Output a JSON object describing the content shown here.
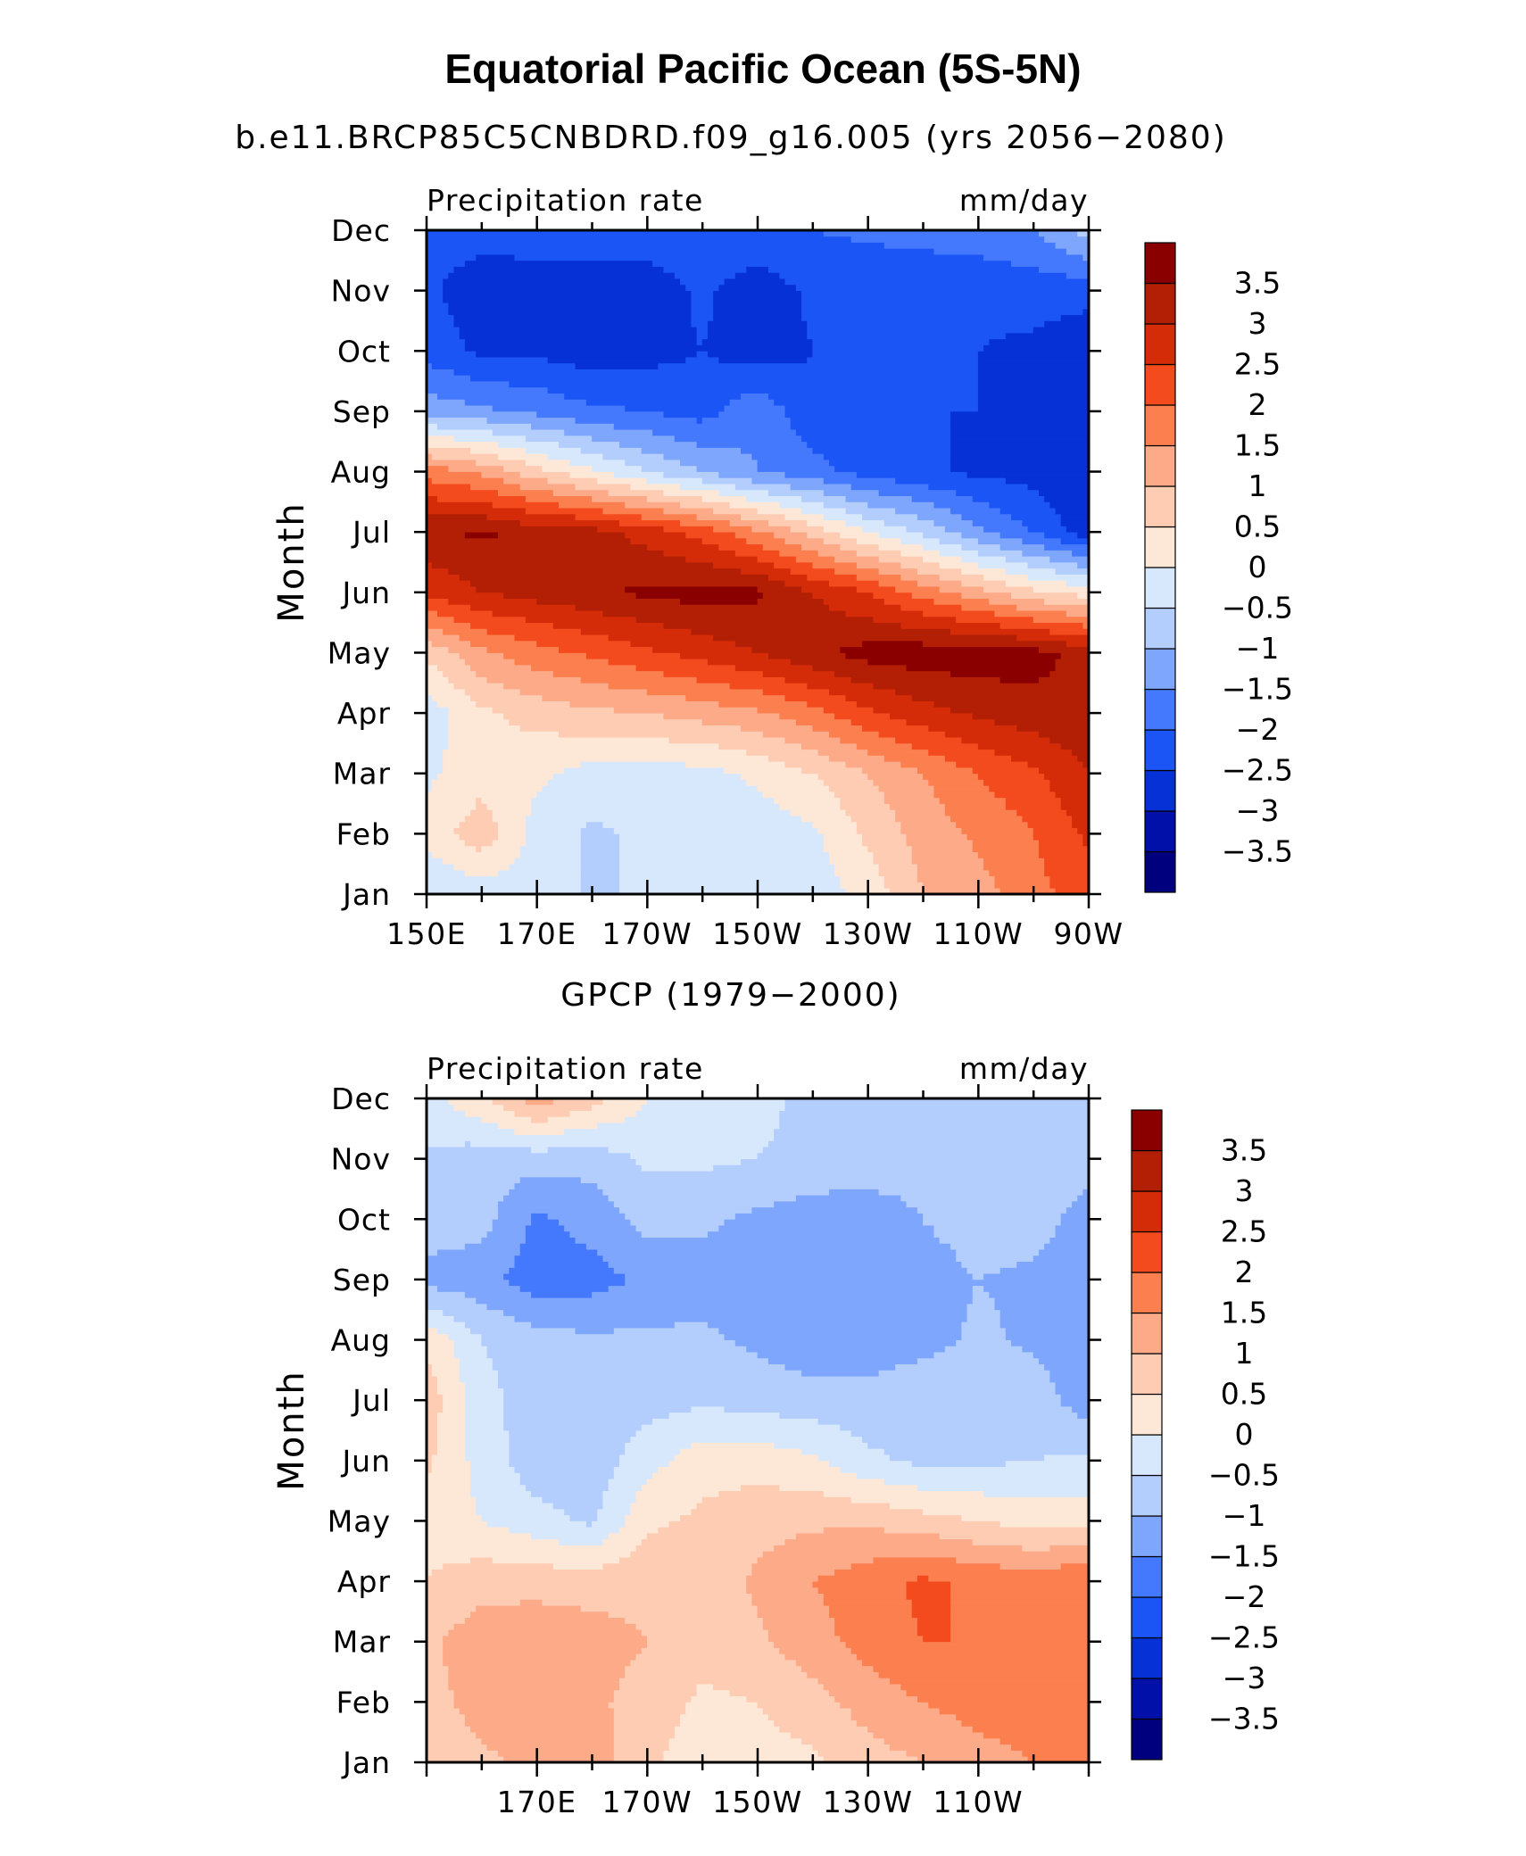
{
  "figure": {
    "title": "Equatorial Pacific Ocean (5S-5N)"
  },
  "colorbar": {
    "levels": [
      -3.5,
      -3,
      -2.5,
      -2,
      -1.5,
      -1,
      -0.5,
      0,
      0.5,
      1,
      1.5,
      2,
      2.5,
      3,
      3.5
    ],
    "labels": [
      "−3.5",
      "−3",
      "−2.5",
      "−2",
      "−1.5",
      "−1",
      "−0.5",
      "0",
      "0.5",
      "1",
      "1.5",
      "2",
      "2.5",
      "3",
      "3.5"
    ],
    "colors": [
      "#00007f",
      "#0010a8",
      "#0631d6",
      "#1c55f5",
      "#4579fd",
      "#7ea6fc",
      "#b3cefc",
      "#d8e8fc",
      "#fde7d7",
      "#fdccb3",
      "#fcaa88",
      "#fb7f4f",
      "#f44b1e",
      "#d42c09",
      "#b31f04",
      "#8a0000"
    ]
  },
  "chart_data": [
    {
      "type": "heatmap",
      "subtitle": "b.e11.BRCP85C5CNBDRD.f09_g16.005 (yrs 2056−2080)",
      "left_label": "Precipitation rate",
      "right_label": "mm/day",
      "xlabel": "",
      "ylabel": "Month",
      "x_range_deg_east": [
        150,
        270
      ],
      "x_ticks": [
        150,
        170,
        190,
        210,
        230,
        250,
        270
      ],
      "x_tick_labels": [
        "150E",
        "170E",
        "170W",
        "150W",
        "130W",
        "110W",
        "90W"
      ],
      "months": [
        "Jan",
        "Feb",
        "Mar",
        "Apr",
        "May",
        "Jun",
        "Jul",
        "Aug",
        "Sep",
        "Oct",
        "Nov",
        "Dec"
      ],
      "z_units": "mm/day",
      "z_grid": [
        [
          -0.5,
          -0.3,
          -0.2,
          -0.6,
          -0.4,
          -0.3,
          -0.3,
          -0.3,
          0.2,
          1.0,
          1.3,
          1.8,
          2.3
        ],
        [
          0.2,
          0.8,
          -0.2,
          -0.6,
          -0.4,
          -0.3,
          -0.3,
          -0.1,
          0.6,
          1.2,
          1.6,
          2.0,
          2.6
        ],
        [
          -0.1,
          0.3,
          0.1,
          -0.2,
          -0.2,
          -0.2,
          0.1,
          0.5,
          1.0,
          1.5,
          2.0,
          2.4,
          3.0
        ],
        [
          -0.3,
          0.4,
          0.7,
          0.9,
          1.0,
          1.2,
          1.4,
          1.8,
          2.4,
          2.8,
          3.1,
          3.3,
          3.4
        ],
        [
          0.6,
          1.4,
          1.8,
          2.1,
          2.4,
          2.7,
          3.0,
          3.4,
          3.7,
          3.8,
          3.8,
          3.7,
          3.3
        ],
        [
          2.6,
          3.0,
          3.2,
          3.4,
          3.6,
          3.7,
          3.6,
          3.0,
          2.5,
          1.8,
          1.2,
          0.6,
          0.3
        ],
        [
          3.4,
          3.6,
          3.3,
          3.2,
          2.8,
          2.3,
          1.6,
          0.8,
          0.0,
          -0.6,
          -1.4,
          -2.0,
          -2.8
        ],
        [
          1.8,
          1.4,
          0.7,
          0.1,
          -0.5,
          -1.0,
          -1.5,
          -1.8,
          -2.2,
          -2.4,
          -2.6,
          -2.7,
          -3.0
        ],
        [
          -1.2,
          -1.4,
          -1.6,
          -1.9,
          -2.0,
          -2.2,
          -1.6,
          -2.4,
          -2.4,
          -2.5,
          -2.5,
          -2.5,
          -2.8
        ],
        [
          -2.2,
          -2.6,
          -2.6,
          -2.8,
          -2.7,
          -2.5,
          -2.8,
          -2.5,
          -2.5,
          -2.5,
          -2.5,
          -2.6,
          -2.9
        ],
        [
          -2.4,
          -2.8,
          -2.7,
          -2.8,
          -2.8,
          -2.4,
          -2.8,
          -2.4,
          -2.4,
          -2.4,
          -2.4,
          -2.3,
          -2.3
        ],
        [
          -2.3,
          -2.3,
          -2.3,
          -2.2,
          -2.2,
          -2.1,
          -2.1,
          -2.0,
          -1.9,
          -1.8,
          -1.7,
          -1.5,
          -0.8
        ]
      ]
    },
    {
      "type": "heatmap",
      "subtitle": "GPCP (1979−2000)",
      "left_label": "Precipitation rate",
      "right_label": "mm/day",
      "xlabel": "",
      "ylabel": "Month",
      "x_range_deg_east": [
        150,
        270
      ],
      "x_ticks": [
        170,
        190,
        210,
        230,
        250
      ],
      "x_tick_labels": [
        "170E",
        "170W",
        "150W",
        "130W",
        "110W"
      ],
      "months": [
        "Jan",
        "Feb",
        "Mar",
        "Apr",
        "May",
        "Jun",
        "Jul",
        "Aug",
        "Sep",
        "Oct",
        "Nov",
        "Dec"
      ],
      "z_units": "mm/day",
      "z_grid": [
        [
          0.6,
          0.9,
          1.1,
          1.3,
          0.6,
          0.2,
          0.3,
          0.4,
          0.8,
          1.0,
          1.3,
          1.5,
          1.6
        ],
        [
          0.8,
          1.2,
          1.3,
          1.1,
          0.8,
          0.4,
          0.5,
          0.8,
          1.2,
          1.5,
          1.7,
          1.8,
          1.7
        ],
        [
          0.9,
          1.3,
          1.4,
          1.2,
          1.0,
          0.7,
          0.9,
          1.3,
          1.7,
          2.0,
          2.0,
          1.9,
          2.0
        ],
        [
          0.5,
          0.8,
          0.8,
          0.8,
          0.9,
          0.7,
          1.1,
          1.5,
          1.8,
          2.1,
          1.9,
          1.8,
          2.0
        ],
        [
          0.3,
          0.0,
          -0.3,
          -0.6,
          0.4,
          0.6,
          0.8,
          0.9,
          0.9,
          0.7,
          0.5,
          0.3,
          0.3
        ],
        [
          0.6,
          -0.2,
          -0.8,
          -0.8,
          -0.2,
          0.3,
          0.3,
          0.1,
          -0.4,
          -0.6,
          -0.6,
          -0.5,
          -0.4
        ],
        [
          0.8,
          -0.3,
          -0.8,
          -0.8,
          -0.7,
          -0.6,
          -0.7,
          -0.8,
          -0.8,
          -0.6,
          -0.6,
          -0.7,
          -1.3
        ],
        [
          0.4,
          -0.5,
          -0.8,
          -0.9,
          -0.9,
          -0.9,
          -1.1,
          -1.3,
          -1.3,
          -1.2,
          -0.9,
          -1.1,
          -1.4
        ],
        [
          -1.2,
          -1.3,
          -1.8,
          -1.7,
          -1.4,
          -1.2,
          -1.4,
          -1.3,
          -1.4,
          -1.2,
          -1.0,
          -1.1,
          -1.3
        ],
        [
          -0.7,
          -0.8,
          -1.6,
          -1.3,
          -0.8,
          -0.9,
          -1.1,
          -1.3,
          -1.3,
          -1.0,
          -0.8,
          -0.8,
          -1.2
        ],
        [
          -0.6,
          -0.8,
          -0.8,
          -0.8,
          -0.4,
          -0.4,
          -0.5,
          -0.6,
          -0.7,
          -0.8,
          -0.8,
          -0.7,
          -0.8
        ],
        [
          -0.2,
          0.4,
          1.3,
          0.7,
          0.0,
          -0.4,
          -0.4,
          -0.6,
          -0.6,
          -0.7,
          -0.7,
          -0.7,
          -0.6
        ]
      ]
    }
  ]
}
